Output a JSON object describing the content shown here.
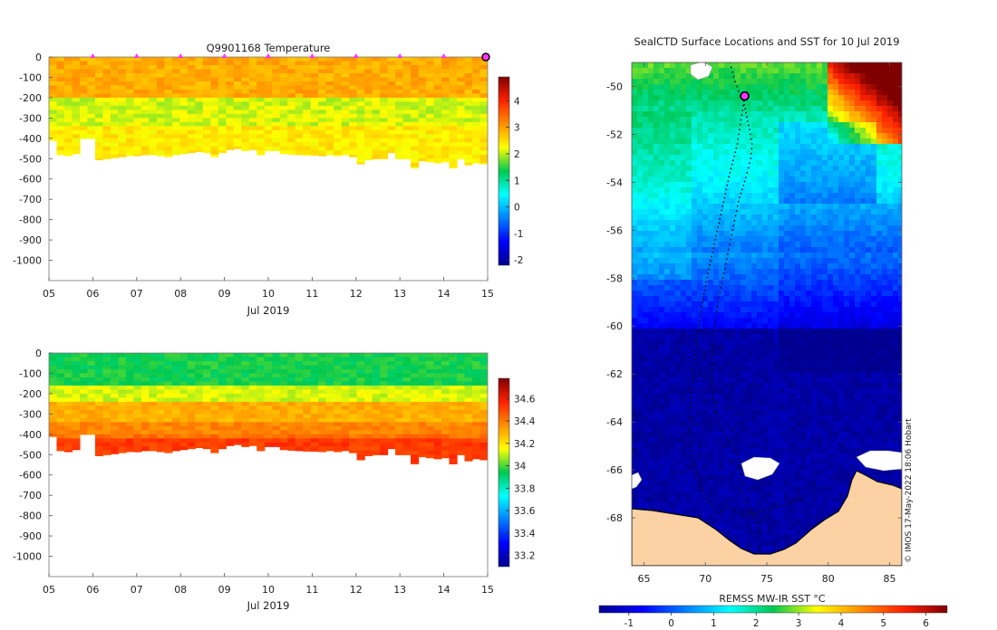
{
  "colors": {
    "land": "#fcd2a4",
    "ice": "#ffffff",
    "track": "#111111",
    "marker": "#ff33ff",
    "axis": "#444444"
  },
  "chart_data": [
    {
      "type": "heatmap",
      "title": "Q9901168  Temperature",
      "xlabel": "Jul 2019",
      "ylabel": "",
      "x_tick_labels": [
        "05",
        "06",
        "07",
        "08",
        "09",
        "10",
        "11",
        "12",
        "13",
        "14",
        "15"
      ],
      "y_tick_labels": [
        "0",
        "-100",
        "-200",
        "-300",
        "-400",
        "-500",
        "-600",
        "-700",
        "-800",
        "-900",
        "-1000"
      ],
      "xlim": [
        5,
        15
      ],
      "ylim": [
        -1100,
        0
      ],
      "colorbar": {
        "min": -2.2,
        "max": 4.9,
        "tick_labels": [
          "-2",
          "-1",
          "0",
          "1",
          "2",
          "3",
          "4"
        ]
      },
      "profile_markers_day": [
        6,
        7,
        8,
        9,
        10,
        11,
        12,
        13,
        14
      ],
      "latest_marker_day": 15,
      "profile_bottom_depths": [
        -410,
        -480,
        -485,
        -475,
        -400,
        -400,
        -505,
        -500,
        -495,
        -490,
        -485,
        -485,
        -480,
        -480,
        -485,
        -490,
        -480,
        -475,
        -470,
        -465,
        -470,
        -490,
        -470,
        -455,
        -450,
        -460,
        -455,
        -480,
        -460,
        -460,
        -475,
        -478,
        -480,
        -482,
        -483,
        -485,
        -480,
        -485,
        -480,
        -490,
        -525,
        -505,
        -500,
        -500,
        -470,
        -500,
        -500,
        -545,
        -510,
        -515,
        -520,
        -515,
        -545,
        -500,
        -530,
        -520,
        -525
      ],
      "layers": [
        {
          "top": 0,
          "bottom": -190,
          "value": 2.9
        },
        {
          "top": -190,
          "bottom": -330,
          "value": 2.1
        },
        {
          "top": -330,
          "bottom": -600,
          "value": 2.4
        }
      ]
    },
    {
      "type": "heatmap",
      "title": "",
      "xlabel": "Jul 2019",
      "ylabel": "",
      "x_tick_labels": [
        "05",
        "06",
        "07",
        "08",
        "09",
        "10",
        "11",
        "12",
        "13",
        "14",
        "15"
      ],
      "y_tick_labels": [
        "0",
        "-100",
        "-200",
        "-300",
        "-400",
        "-500",
        "-600",
        "-700",
        "-800",
        "-900",
        "-1000"
      ],
      "xlim": [
        5,
        15
      ],
      "ylim": [
        -1100,
        0
      ],
      "colorbar": {
        "min": 33.1,
        "max": 34.78,
        "tick_labels": [
          "33.2",
          "33.4",
          "33.6",
          "33.8",
          "34",
          "34.2",
          "34.4",
          "34.6"
        ]
      },
      "layers": [
        {
          "top": 0,
          "bottom": -150,
          "value": 33.95
        },
        {
          "top": -150,
          "bottom": -230,
          "value": 34.12
        },
        {
          "top": -230,
          "bottom": -330,
          "value": 34.3
        },
        {
          "top": -330,
          "bottom": -420,
          "value": 34.38
        },
        {
          "top": -420,
          "bottom": -600,
          "value": 34.48
        }
      ]
    },
    {
      "type": "heatmap",
      "title": "SealCTD Surface Locations and SST for 10 Jul 2019",
      "xlabel": "",
      "ylabel": "",
      "x_tick_labels": [
        "65",
        "70",
        "75",
        "80",
        "85"
      ],
      "y_tick_labels": [
        "-50",
        "-52",
        "-54",
        "-56",
        "-58",
        "-60",
        "-62",
        "-64",
        "-66",
        "-68"
      ],
      "xlim": [
        64,
        86
      ],
      "ylim": [
        -70,
        -49
      ],
      "colorbar": {
        "label": "REMSS MW-IR SST °C",
        "min": -1.7,
        "max": 6.5,
        "tick_labels": [
          "-1",
          "0",
          "1",
          "2",
          "3",
          "4",
          "5",
          "6"
        ]
      },
      "track_points": [
        [
          72.0,
          -49.0
        ],
        [
          72.3,
          -49.6
        ],
        [
          72.7,
          -50.2
        ],
        [
          73.1,
          -50.6
        ],
        [
          73.3,
          -51.1
        ],
        [
          73.6,
          -51.8
        ],
        [
          73.8,
          -52.4
        ],
        [
          73.7,
          -53.0
        ],
        [
          73.3,
          -53.8
        ],
        [
          72.7,
          -54.8
        ],
        [
          72.3,
          -55.8
        ],
        [
          71.9,
          -56.8
        ],
        [
          71.5,
          -57.8
        ],
        [
          71.1,
          -58.8
        ],
        [
          70.8,
          -59.8
        ],
        [
          70.6,
          -60.8
        ],
        [
          70.5,
          -61.8
        ],
        [
          70.6,
          -62.8
        ],
        [
          70.9,
          -63.8
        ],
        [
          71.5,
          -64.5
        ],
        [
          72.3,
          -65.0
        ],
        [
          72.8,
          -65.8
        ],
        [
          72.8,
          -66.6
        ],
        [
          73.3,
          -67.4
        ],
        [
          74.0,
          -68.0
        ],
        [
          74.5,
          -68.8
        ]
      ],
      "track_points_2": [
        [
          73.2,
          -50.4
        ],
        [
          72.9,
          -51.4
        ],
        [
          72.6,
          -52.4
        ],
        [
          72.0,
          -53.6
        ],
        [
          71.4,
          -55.0
        ],
        [
          70.8,
          -56.4
        ],
        [
          70.2,
          -57.8
        ],
        [
          69.7,
          -59.2
        ],
        [
          69.3,
          -60.6
        ],
        [
          69.0,
          -62.0
        ],
        [
          68.8,
          -63.4
        ],
        [
          68.9,
          -64.8
        ],
        [
          69.2,
          -66.0
        ],
        [
          70.0,
          -67.2
        ],
        [
          71.0,
          -67.8
        ],
        [
          72.0,
          -67.6
        ],
        [
          73.0,
          -67.9
        ],
        [
          74.0,
          -67.8
        ],
        [
          75.5,
          -67.6
        ],
        [
          77.0,
          -67.4
        ],
        [
          78.0,
          -67.1
        ]
      ],
      "latest_position": [
        73.2,
        -50.4
      ]
    }
  ],
  "figure": {
    "credit": "© IMOS 17-May-2022 18:06 Hobart"
  }
}
